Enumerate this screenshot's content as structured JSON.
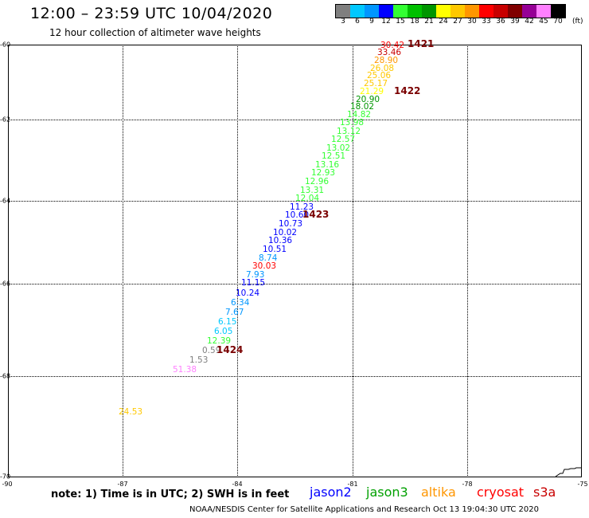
{
  "header": {
    "title": "12:00 – 23:59 UTC 10/04/2020",
    "subtitle": "12 hour collection of altimeter wave heights"
  },
  "legend": {
    "unit": "(ft)",
    "bins": [
      {
        "label": "3",
        "color": "#7f7f7f"
      },
      {
        "label": "6",
        "color": "#00c8ff"
      },
      {
        "label": "9",
        "color": "#0096ff"
      },
      {
        "label": "12",
        "color": "#0000ff"
      },
      {
        "label": "15",
        "color": "#33ff33"
      },
      {
        "label": "18",
        "color": "#00c000"
      },
      {
        "label": "21",
        "color": "#009600"
      },
      {
        "label": "24",
        "color": "#ffff00"
      },
      {
        "label": "27",
        "color": "#ffc800"
      },
      {
        "label": "30",
        "color": "#ff9600"
      },
      {
        "label": "33",
        "color": "#ff0000"
      },
      {
        "label": "36",
        "color": "#c80000"
      },
      {
        "label": "39",
        "color": "#800000"
      },
      {
        "label": "42",
        "color": "#960096"
      },
      {
        "label": "45",
        "color": "#ff80ff"
      },
      {
        "label": "70",
        "color": "#000000"
      }
    ]
  },
  "axes": {
    "y_ticks": [
      {
        "label": "-60",
        "lat": -60
      },
      {
        "label": "-62",
        "lat": -62
      },
      {
        "label": "-64",
        "lat": -64
      },
      {
        "label": "-66",
        "lat": -66
      },
      {
        "label": "-68",
        "lat": -68
      },
      {
        "label": "-70",
        "lat": -70
      }
    ],
    "x_ticks": [
      {
        "label": "-90",
        "lon": -90
      },
      {
        "label": "-87",
        "lon": -87
      },
      {
        "label": "-84",
        "lon": -84
      },
      {
        "label": "-81",
        "lon": -81
      },
      {
        "label": "-78",
        "lon": -78
      },
      {
        "label": "-75",
        "lon": -75
      }
    ]
  },
  "observations": [
    {
      "text": "30.42",
      "color": "#ff0000",
      "lon": -80.26,
      "lat": -60.02
    },
    {
      "text": "33.46",
      "color": "#c80000",
      "lon": -80.35,
      "lat": -60.22
    },
    {
      "text": "28.90",
      "color": "#ff9600",
      "lon": -80.44,
      "lat": -60.43
    },
    {
      "text": "26.08",
      "color": "#ffc800",
      "lon": -80.53,
      "lat": -60.64
    },
    {
      "text": "25.06",
      "color": "#ffc800",
      "lon": -80.62,
      "lat": -60.84
    },
    {
      "text": "25.17",
      "color": "#ffc800",
      "lon": -80.71,
      "lat": -61.05
    },
    {
      "text": "21.29",
      "color": "#ffff00",
      "lon": -80.81,
      "lat": -61.26
    },
    {
      "text": "20.90",
      "color": "#009600",
      "lon": -80.9,
      "lat": -61.46
    },
    {
      "text": "18.02",
      "color": "#009600",
      "lon": -81.05,
      "lat": -61.67
    },
    {
      "text": "14.82",
      "color": "#33ff33",
      "lon": -81.14,
      "lat": -61.87
    },
    {
      "text": "13.98",
      "color": "#33ff33",
      "lon": -81.32,
      "lat": -62.08
    },
    {
      "text": "13.12",
      "color": "#33ff33",
      "lon": -81.41,
      "lat": -62.29
    },
    {
      "text": "12.57",
      "color": "#33ff33",
      "lon": -81.55,
      "lat": -62.49
    },
    {
      "text": "13.02",
      "color": "#33ff33",
      "lon": -81.67,
      "lat": -62.7
    },
    {
      "text": "12.51",
      "color": "#33ff33",
      "lon": -81.8,
      "lat": -62.91
    },
    {
      "text": "13.16",
      "color": "#33ff33",
      "lon": -81.96,
      "lat": -63.11
    },
    {
      "text": "12.93",
      "color": "#33ff33",
      "lon": -82.08,
      "lat": -63.32
    },
    {
      "text": "12.96",
      "color": "#33ff33",
      "lon": -82.24,
      "lat": -63.53
    },
    {
      "text": "13.31",
      "color": "#33ff33",
      "lon": -82.36,
      "lat": -63.74
    },
    {
      "text": "12.04",
      "color": "#33ff33",
      "lon": -82.49,
      "lat": -63.95
    },
    {
      "text": "11.23",
      "color": "#0000ff",
      "lon": -82.64,
      "lat": -64.15
    },
    {
      "text": "10.60",
      "color": "#0000ff",
      "lon": -82.77,
      "lat": -64.35
    },
    {
      "text": "10.73",
      "color": "#0000ff",
      "lon": -82.93,
      "lat": -64.55
    },
    {
      "text": "10.02",
      "color": "#0000ff",
      "lon": -83.08,
      "lat": -64.76
    },
    {
      "text": "10.36",
      "color": "#0000ff",
      "lon": -83.2,
      "lat": -64.96
    },
    {
      "text": "10.51",
      "color": "#0000ff",
      "lon": -83.35,
      "lat": -65.17
    },
    {
      "text": "8.74",
      "color": "#0096ff",
      "lon": -83.44,
      "lat": -65.38
    },
    {
      "text": "30.03",
      "color": "#ff0000",
      "lon": -83.62,
      "lat": -65.58
    },
    {
      "text": "7.93",
      "color": "#0096ff",
      "lon": -83.77,
      "lat": -65.79
    },
    {
      "text": "11.15",
      "color": "#0000ff",
      "lon": -83.9,
      "lat": -65.99
    },
    {
      "text": "10.24",
      "color": "#0000ff",
      "lon": -84.05,
      "lat": -66.2
    },
    {
      "text": "6.34",
      "color": "#0096ff",
      "lon": -84.17,
      "lat": -66.41
    },
    {
      "text": "7.67",
      "color": "#0096ff",
      "lon": -84.32,
      "lat": -66.62
    },
    {
      "text": "6.15",
      "color": "#00c8ff",
      "lon": -84.5,
      "lat": -66.82
    },
    {
      "text": "6.05",
      "color": "#00c8ff",
      "lon": -84.62,
      "lat": -67.03
    },
    {
      "text": "12.39",
      "color": "#33ff33",
      "lon": -84.8,
      "lat": -67.24
    },
    {
      "text": "0.59",
      "color": "#7f7f7f",
      "lon": -84.92,
      "lat": -67.44
    },
    {
      "text": "1.53",
      "color": "#7f7f7f",
      "lon": -85.25,
      "lat": -67.65
    },
    {
      "text": "51.38",
      "color": "#ff80ff",
      "lon": -85.7,
      "lat": -67.86
    },
    {
      "text": "24.53",
      "color": "#ffc800",
      "lon": -87.1,
      "lat": -68.72
    }
  ],
  "passes": [
    {
      "text": "1421",
      "lon": -79.55,
      "lat": -60.0
    },
    {
      "text": "1422",
      "lon": -79.9,
      "lat": -61.26
    },
    {
      "text": "1423",
      "lon": -82.3,
      "lat": -64.35
    },
    {
      "text": "1424",
      "lon": -84.55,
      "lat": -67.44
    }
  ],
  "footer": {
    "note": "note: 1) Time is in UTC; 2) SWH is in feet",
    "satellites": [
      {
        "name": "jason2",
        "color": "#0000ff"
      },
      {
        "name": "jason3",
        "color": "#00a000"
      },
      {
        "name": "altika",
        "color": "#ff9600"
      },
      {
        "name": "cryosat",
        "color": "#ff0000"
      },
      {
        "name": "s3a",
        "color": "#c80000"
      }
    ],
    "credit": "NOAA/NESDIS Center for Satellite Applications and Research   Oct 13 19:04:30 UTC 2020"
  }
}
